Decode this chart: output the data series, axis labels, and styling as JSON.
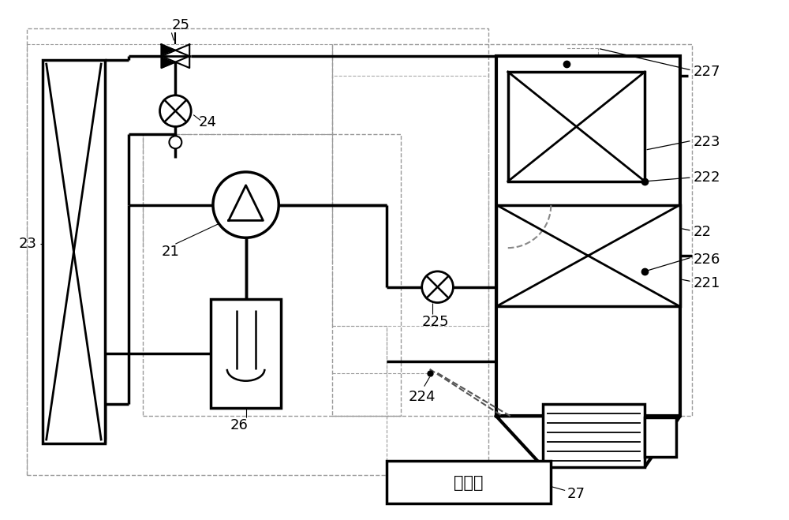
{
  "bg_color": "#ffffff",
  "lc": "#000000",
  "fig_width": 10.0,
  "fig_height": 6.59,
  "dpi": 100
}
